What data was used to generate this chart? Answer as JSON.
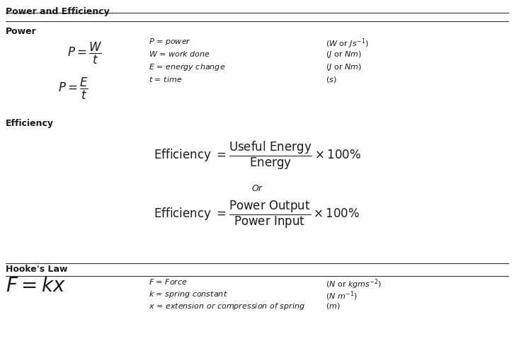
{
  "title1": "Power and Efficiency",
  "title2": "Hooke's Law",
  "bg_color": "#ffffff",
  "text_color": "#1a1a1a",
  "title_fontsize": 9,
  "bold_label_fontsize": 9,
  "formula_fontsize": 12,
  "small_fontsize": 8,
  "efficiency_fontsize": 12,
  "hookex_fontsize": 20,
  "or_fontsize": 9
}
